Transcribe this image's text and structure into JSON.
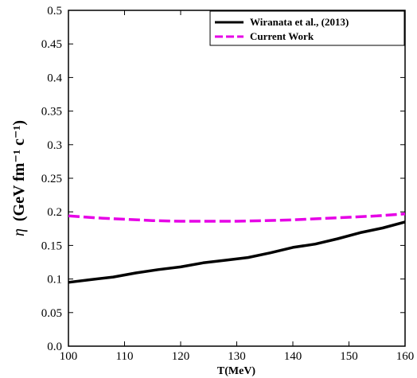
{
  "chart_data": {
    "type": "line",
    "xlabel": "T(MeV)",
    "ylabel": "(GeV fm⁻¹ c⁻¹)",
    "ylabel_symbol": "η",
    "xlim": [
      100,
      160
    ],
    "ylim": [
      0,
      0.5
    ],
    "xticks": [
      "100",
      "110",
      "120",
      "130",
      "140",
      "150",
      "160"
    ],
    "yticks": [
      "0.0",
      "0.05",
      "0.1",
      "0.15",
      "0.2",
      "0.25",
      "0.3",
      "0.35",
      "0.4",
      "0.45",
      "0.5"
    ],
    "grid": false,
    "legend_position": "top-right",
    "series": [
      {
        "name": "Wiranata et al., (2013)",
        "color": "#000000",
        "style": "solid",
        "x": [
          100,
          104,
          108,
          112,
          116,
          120,
          124,
          128,
          132,
          136,
          140,
          144,
          148,
          152,
          156,
          160
        ],
        "y": [
          0.095,
          0.099,
          0.103,
          0.109,
          0.114,
          0.118,
          0.124,
          0.128,
          0.132,
          0.139,
          0.147,
          0.152,
          0.16,
          0.169,
          0.176,
          0.185
        ]
      },
      {
        "name": "Current Work",
        "color": "#e600e6",
        "style": "dashed",
        "x": [
          100,
          105,
          110,
          115,
          120,
          125,
          130,
          135,
          140,
          145,
          150,
          155,
          160
        ],
        "y": [
          0.194,
          0.191,
          0.189,
          0.187,
          0.186,
          0.186,
          0.186,
          0.187,
          0.188,
          0.19,
          0.192,
          0.194,
          0.197
        ]
      }
    ]
  }
}
